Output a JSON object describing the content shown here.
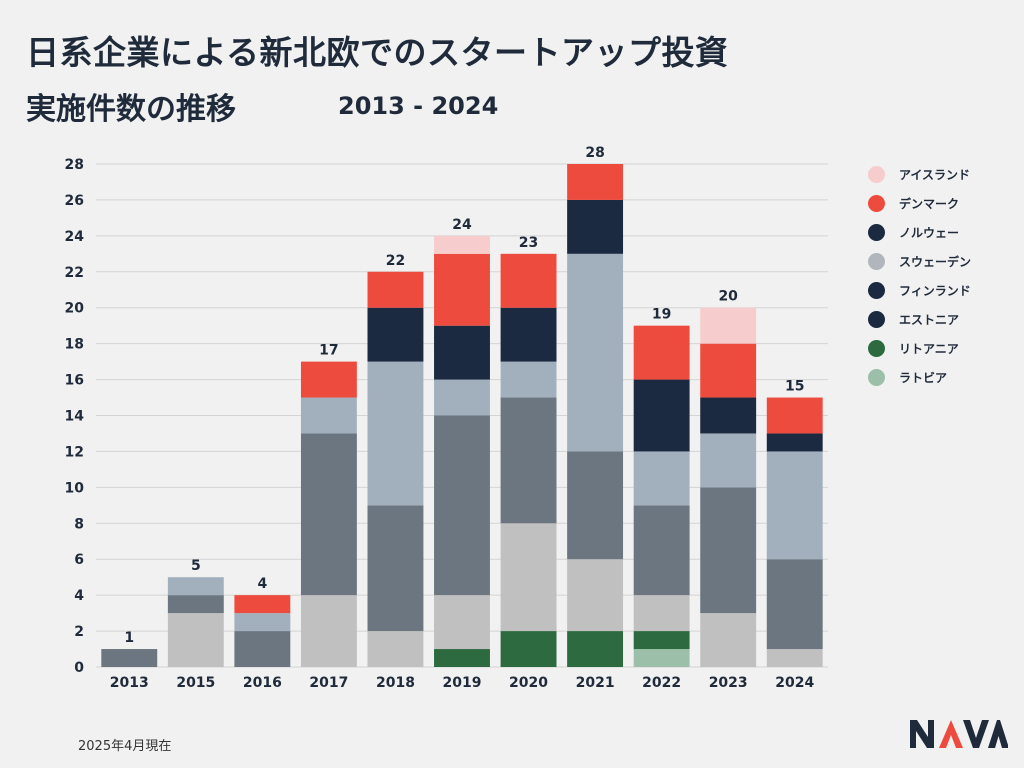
{
  "title_line1": "日系企業による新北欧でのスタートアップ投資",
  "title_line2": "実施件数の推移",
  "subtitle": "2013 - 2024",
  "footnote": "2025年4月現在",
  "logo_text": "NAVA",
  "colors": {
    "grid": "#d4d4d4",
    "axis_text": "#1f2a3b",
    "total_label": "#1f2a3b",
    "logo": "#1f2a3b",
    "logo_accent": "#ee4b3f"
  },
  "chart_data": {
    "type": "bar",
    "stacked": true,
    "categories": [
      "2013",
      "2015",
      "2016",
      "2017",
      "2018",
      "2019",
      "2020",
      "2021",
      "2022",
      "2023",
      "2024"
    ],
    "totals": [
      1,
      5,
      4,
      17,
      22,
      24,
      23,
      28,
      19,
      20,
      15
    ],
    "ylim": [
      0,
      28
    ],
    "yticks": [
      0,
      2,
      4,
      6,
      8,
      10,
      12,
      14,
      16,
      18,
      20,
      22,
      24,
      26,
      28
    ],
    "grid": true,
    "legend_position": "right",
    "series": [
      {
        "name": "ラトビア",
        "color": "#9cbfa9",
        "legend_color": "#9cbfa9",
        "values": [
          0,
          0,
          0,
          0,
          0,
          0,
          0,
          0,
          1,
          0,
          0
        ]
      },
      {
        "name": "リトアニア",
        "color": "#2d6a3f",
        "legend_color": "#2d6a3f",
        "values": [
          0,
          0,
          0,
          0,
          0,
          1,
          2,
          2,
          1,
          0,
          0
        ]
      },
      {
        "name": "エストニア",
        "color": "#c0c0c0",
        "legend_color": "#1b2a40",
        "values": [
          0,
          3,
          0,
          4,
          2,
          3,
          6,
          4,
          2,
          3,
          1
        ]
      },
      {
        "name": "フィンランド",
        "color": "#6b7680",
        "legend_color": "#1b2a40",
        "values": [
          1,
          1,
          2,
          9,
          7,
          10,
          7,
          6,
          5,
          7,
          5
        ]
      },
      {
        "name": "スウェーデン",
        "color": "#a2b0bd",
        "legend_color": "#b0b6bb",
        "values": [
          0,
          1,
          1,
          2,
          8,
          2,
          2,
          11,
          3,
          3,
          6
        ]
      },
      {
        "name": "ノルウェー",
        "color": "#1b2a40",
        "legend_color": "#1b2a40",
        "values": [
          0,
          0,
          0,
          0,
          3,
          3,
          3,
          3,
          4,
          2,
          1
        ]
      },
      {
        "name": "デンマーク",
        "color": "#ee4b3f",
        "legend_color": "#ee4b3f",
        "values": [
          0,
          0,
          1,
          2,
          2,
          4,
          3,
          2,
          3,
          3,
          2
        ]
      },
      {
        "name": "アイスランド",
        "color": "#f6cccc",
        "legend_color": "#f6cccc",
        "values": [
          0,
          0,
          0,
          0,
          0,
          1,
          0,
          0,
          0,
          2,
          0
        ]
      }
    ],
    "legend_order": [
      "アイスランド",
      "デンマーク",
      "ノルウェー",
      "スウェーデン",
      "フィンランド",
      "エストニア",
      "リトアニア",
      "ラトビア"
    ]
  }
}
